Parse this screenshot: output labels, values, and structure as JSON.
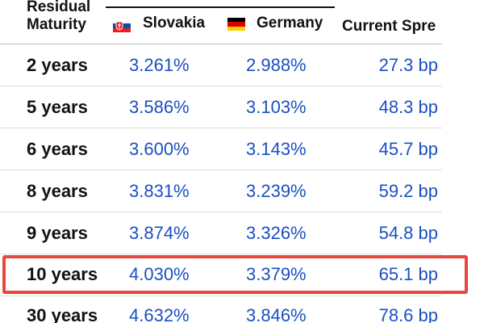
{
  "header": {
    "maturity_line1": "Residual",
    "maturity_line2": "Maturity",
    "country1": "Slovakia",
    "country2": "Germany",
    "spread": "Current Spre"
  },
  "rows": [
    {
      "maturity": "2 years",
      "slovakia": "3.261%",
      "germany": "2.988%",
      "spread": "27.3 bp"
    },
    {
      "maturity": "5 years",
      "slovakia": "3.586%",
      "germany": "3.103%",
      "spread": "48.3 bp"
    },
    {
      "maturity": "6 years",
      "slovakia": "3.600%",
      "germany": "3.143%",
      "spread": "45.7 bp"
    },
    {
      "maturity": "8 years",
      "slovakia": "3.831%",
      "germany": "3.239%",
      "spread": "59.2 bp"
    },
    {
      "maturity": "9 years",
      "slovakia": "3.874%",
      "germany": "3.326%",
      "spread": "54.8 bp"
    },
    {
      "maturity": "10 years",
      "slovakia": "4.030%",
      "germany": "3.379%",
      "spread": "65.1 bp"
    },
    {
      "maturity": "30 years",
      "slovakia": "4.632%",
      "germany": "3.846%",
      "spread": "78.6 bp"
    }
  ],
  "colors": {
    "value_text": "#1a4fc4",
    "highlight_border": "#e8473e"
  },
  "icons": {
    "slovakia_flag": "slovakia-flag-icon",
    "germany_flag": "germany-flag-icon"
  }
}
